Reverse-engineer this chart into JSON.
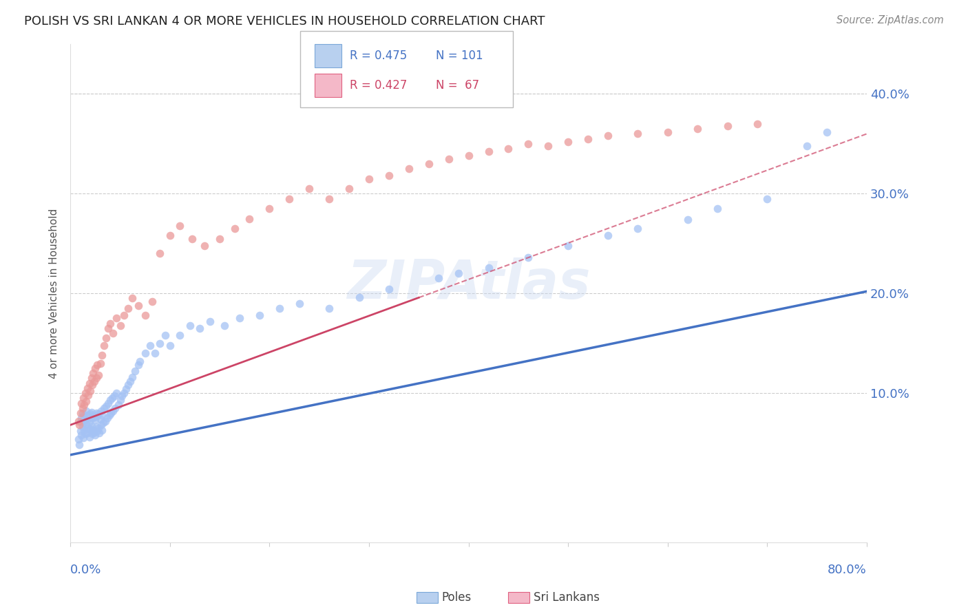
{
  "title": "POLISH VS SRI LANKAN 4 OR MORE VEHICLES IN HOUSEHOLD CORRELATION CHART",
  "source": "Source: ZipAtlas.com",
  "ylabel": "4 or more Vehicles in Household",
  "xmin": 0.0,
  "xmax": 0.8,
  "ymin": -0.05,
  "ymax": 0.45,
  "legend_blue_r": "R = 0.475",
  "legend_blue_n": "N = 101",
  "legend_pink_r": "R = 0.427",
  "legend_pink_n": "N =  67",
  "poles_label": "Poles",
  "sri_lankans_label": "Sri Lankans",
  "blue_color": "#a4c2f4",
  "pink_color": "#ea9999",
  "blue_line_color": "#4472c4",
  "pink_line_color": "#cc4466",
  "grid_color": "#cccccc",
  "ytick_values": [
    0.0,
    0.1,
    0.2,
    0.3,
    0.4
  ],
  "ytick_labels": [
    "",
    "10.0%",
    "20.0%",
    "30.0%",
    "40.0%"
  ],
  "poles_x": [
    0.008,
    0.009,
    0.01,
    0.01,
    0.011,
    0.011,
    0.012,
    0.012,
    0.013,
    0.013,
    0.014,
    0.014,
    0.015,
    0.015,
    0.016,
    0.016,
    0.017,
    0.017,
    0.018,
    0.018,
    0.019,
    0.019,
    0.02,
    0.02,
    0.021,
    0.021,
    0.022,
    0.022,
    0.023,
    0.023,
    0.024,
    0.024,
    0.025,
    0.025,
    0.026,
    0.026,
    0.027,
    0.027,
    0.028,
    0.028,
    0.029,
    0.03,
    0.031,
    0.031,
    0.032,
    0.032,
    0.033,
    0.034,
    0.035,
    0.036,
    0.037,
    0.038,
    0.039,
    0.04,
    0.041,
    0.042,
    0.043,
    0.044,
    0.045,
    0.046,
    0.048,
    0.05,
    0.052,
    0.054,
    0.056,
    0.058,
    0.06,
    0.062,
    0.065,
    0.068,
    0.07,
    0.075,
    0.08,
    0.085,
    0.09,
    0.095,
    0.1,
    0.11,
    0.12,
    0.13,
    0.14,
    0.155,
    0.17,
    0.19,
    0.21,
    0.23,
    0.26,
    0.29,
    0.32,
    0.37,
    0.39,
    0.42,
    0.46,
    0.5,
    0.54,
    0.57,
    0.62,
    0.65,
    0.7,
    0.74,
    0.76
  ],
  "poles_y": [
    0.054,
    0.048,
    0.062,
    0.071,
    0.058,
    0.075,
    0.066,
    0.08,
    0.055,
    0.07,
    0.063,
    0.077,
    0.059,
    0.073,
    0.068,
    0.082,
    0.06,
    0.074,
    0.065,
    0.078,
    0.056,
    0.071,
    0.064,
    0.079,
    0.067,
    0.081,
    0.059,
    0.075,
    0.063,
    0.077,
    0.061,
    0.076,
    0.058,
    0.073,
    0.066,
    0.08,
    0.062,
    0.077,
    0.065,
    0.079,
    0.06,
    0.074,
    0.068,
    0.082,
    0.063,
    0.078,
    0.07,
    0.085,
    0.072,
    0.087,
    0.075,
    0.09,
    0.078,
    0.093,
    0.08,
    0.095,
    0.082,
    0.097,
    0.085,
    0.1,
    0.088,
    0.093,
    0.097,
    0.1,
    0.104,
    0.108,
    0.112,
    0.116,
    0.122,
    0.128,
    0.132,
    0.14,
    0.148,
    0.14,
    0.15,
    0.158,
    0.148,
    0.158,
    0.168,
    0.165,
    0.172,
    0.168,
    0.175,
    0.178,
    0.185,
    0.19,
    0.185,
    0.196,
    0.204,
    0.215,
    0.22,
    0.226,
    0.236,
    0.248,
    0.258,
    0.265,
    0.274,
    0.285,
    0.295,
    0.348,
    0.362
  ],
  "srilankans_x": [
    0.008,
    0.009,
    0.01,
    0.011,
    0.012,
    0.013,
    0.014,
    0.015,
    0.016,
    0.017,
    0.018,
    0.019,
    0.02,
    0.021,
    0.022,
    0.023,
    0.024,
    0.025,
    0.026,
    0.027,
    0.028,
    0.03,
    0.032,
    0.034,
    0.036,
    0.038,
    0.04,
    0.043,
    0.046,
    0.05,
    0.054,
    0.058,
    0.062,
    0.068,
    0.075,
    0.082,
    0.09,
    0.1,
    0.11,
    0.122,
    0.135,
    0.15,
    0.165,
    0.18,
    0.2,
    0.22,
    0.24,
    0.26,
    0.28,
    0.3,
    0.32,
    0.34,
    0.36,
    0.38,
    0.4,
    0.42,
    0.44,
    0.46,
    0.48,
    0.5,
    0.52,
    0.54,
    0.57,
    0.6,
    0.63,
    0.66,
    0.69
  ],
  "srilankans_y": [
    0.072,
    0.068,
    0.08,
    0.09,
    0.085,
    0.095,
    0.088,
    0.1,
    0.092,
    0.105,
    0.098,
    0.11,
    0.102,
    0.115,
    0.108,
    0.12,
    0.112,
    0.125,
    0.115,
    0.128,
    0.118,
    0.13,
    0.138,
    0.148,
    0.155,
    0.165,
    0.17,
    0.16,
    0.175,
    0.168,
    0.178,
    0.185,
    0.195,
    0.188,
    0.178,
    0.192,
    0.24,
    0.258,
    0.268,
    0.255,
    0.248,
    0.255,
    0.265,
    0.275,
    0.285,
    0.295,
    0.305,
    0.295,
    0.305,
    0.315,
    0.318,
    0.325,
    0.33,
    0.335,
    0.338,
    0.342,
    0.345,
    0.35,
    0.348,
    0.352,
    0.355,
    0.358,
    0.36,
    0.362,
    0.365,
    0.368,
    0.37
  ]
}
